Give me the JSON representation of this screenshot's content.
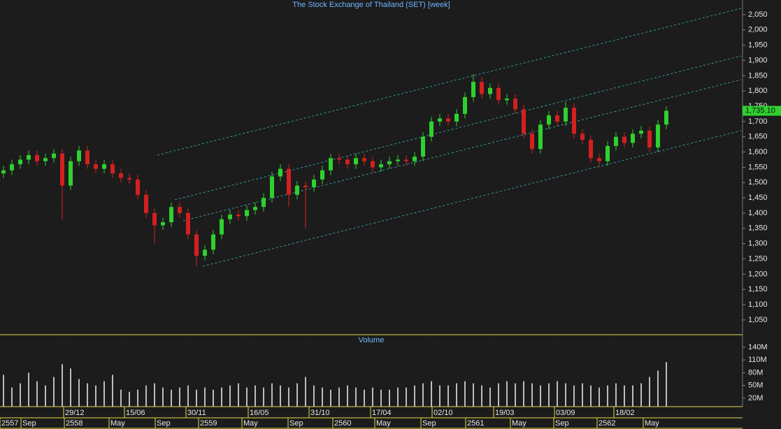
{
  "chart_data": {
    "type": "candlestick",
    "title": "The Stock Exchange of Thailand (SET) [week]",
    "volume_title": "Volume",
    "last_price_label": "1,735.10",
    "up_color": "#2fd12f",
    "down_color": "#d42020",
    "ylim": [
      1004,
      2098
    ],
    "yticks": [
      {
        "value": 1050,
        "label": "1,050"
      },
      {
        "value": 1100,
        "label": "1,100"
      },
      {
        "value": 1150,
        "label": "1,150"
      },
      {
        "value": 1200,
        "label": "1,200"
      },
      {
        "value": 1250,
        "label": "1,250"
      },
      {
        "value": 1300,
        "label": "1,300"
      },
      {
        "value": 1350,
        "label": "1,350"
      },
      {
        "value": 1400,
        "label": "1,400"
      },
      {
        "value": 1450,
        "label": "1,450"
      },
      {
        "value": 1500,
        "label": "1,500"
      },
      {
        "value": 1550,
        "label": "1,550"
      },
      {
        "value": 1600,
        "label": "1,600"
      },
      {
        "value": 1650,
        "label": "1,650"
      },
      {
        "value": 1700,
        "label": "1,700"
      },
      {
        "value": 1750,
        "label": "1,750"
      },
      {
        "value": 1800,
        "label": "1,800"
      },
      {
        "value": 1850,
        "label": "1,850"
      },
      {
        "value": 1900,
        "label": "1,900"
      },
      {
        "value": 1950,
        "label": "1,950"
      },
      {
        "value": 2000,
        "label": "2,000"
      },
      {
        "value": 2050,
        "label": "2,050"
      }
    ],
    "y2lim": [
      0,
      168
    ],
    "y2ticks": [
      {
        "value": 20,
        "label": "20M"
      },
      {
        "value": 50,
        "label": "50M"
      },
      {
        "value": 80,
        "label": "80M"
      },
      {
        "value": 110,
        "label": "110M"
      },
      {
        "value": 140,
        "label": "140M"
      }
    ],
    "date_labels": [
      "29/12",
      "15/06",
      "30/11",
      "16/05",
      "31/10",
      "17/04",
      "02/10",
      "19/03",
      "03/09",
      "18/02"
    ],
    "period_labels": [
      "2557",
      "Sep",
      "2558",
      "May",
      "Sep",
      "2559",
      "May",
      "Sep",
      "2560",
      "May",
      "Sep",
      "2561",
      "May",
      "Sep",
      "2562",
      "May"
    ],
    "open": [
      1530,
      1540,
      1560,
      1575,
      1590,
      1570,
      1580,
      1595,
      1490,
      1570,
      1605,
      1560,
      1545,
      1560,
      1530,
      1515,
      1510,
      1460,
      1400,
      1360,
      1370,
      1420,
      1400,
      1330,
      1260,
      1280,
      1330,
      1380,
      1395,
      1390,
      1410,
      1420,
      1450,
      1520,
      1545,
      1460,
      1490,
      1485,
      1510,
      1540,
      1580,
      1575,
      1560,
      1580,
      1570,
      1550,
      1560,
      1570,
      1575,
      1570,
      1585,
      1650,
      1700,
      1710,
      1700,
      1725,
      1780,
      1830,
      1790,
      1810,
      1770,
      1775,
      1740,
      1660,
      1610,
      1690,
      1720,
      1700,
      1745,
      1660,
      1640,
      1580,
      1570,
      1620,
      1650,
      1630,
      1660,
      1670,
      1615,
      1690
    ],
    "high": [
      1555,
      1575,
      1590,
      1605,
      1605,
      1595,
      1610,
      1610,
      1585,
      1620,
      1620,
      1575,
      1575,
      1575,
      1545,
      1530,
      1525,
      1475,
      1415,
      1385,
      1435,
      1435,
      1415,
      1345,
      1295,
      1345,
      1395,
      1410,
      1410,
      1425,
      1435,
      1465,
      1535,
      1560,
      1560,
      1505,
      1505,
      1525,
      1555,
      1595,
      1595,
      1590,
      1595,
      1595,
      1585,
      1575,
      1585,
      1590,
      1590,
      1600,
      1665,
      1715,
      1725,
      1725,
      1740,
      1795,
      1855,
      1845,
      1825,
      1825,
      1790,
      1790,
      1755,
      1675,
      1705,
      1735,
      1735,
      1765,
      1760,
      1675,
      1655,
      1595,
      1635,
      1665,
      1665,
      1675,
      1685,
      1685,
      1705,
      1750
    ],
    "low": [
      1515,
      1525,
      1545,
      1560,
      1555,
      1555,
      1565,
      1380,
      1475,
      1555,
      1545,
      1530,
      1530,
      1515,
      1500,
      1495,
      1445,
      1385,
      1300,
      1345,
      1355,
      1385,
      1315,
      1225,
      1245,
      1265,
      1315,
      1365,
      1375,
      1375,
      1395,
      1405,
      1435,
      1505,
      1420,
      1445,
      1350,
      1470,
      1495,
      1525,
      1560,
      1545,
      1545,
      1555,
      1535,
      1535,
      1545,
      1555,
      1555,
      1555,
      1570,
      1635,
      1685,
      1685,
      1685,
      1710,
      1765,
      1775,
      1775,
      1755,
      1755,
      1725,
      1645,
      1595,
      1595,
      1675,
      1685,
      1685,
      1645,
      1625,
      1565,
      1555,
      1555,
      1605,
      1615,
      1615,
      1645,
      1600,
      1600,
      1675
    ],
    "close": [
      1540,
      1560,
      1575,
      1590,
      1570,
      1580,
      1595,
      1490,
      1570,
      1605,
      1560,
      1545,
      1560,
      1530,
      1515,
      1510,
      1460,
      1400,
      1360,
      1370,
      1420,
      1400,
      1330,
      1260,
      1280,
      1330,
      1380,
      1395,
      1390,
      1410,
      1420,
      1450,
      1520,
      1545,
      1460,
      1490,
      1485,
      1510,
      1540,
      1580,
      1575,
      1560,
      1580,
      1570,
      1550,
      1560,
      1570,
      1575,
      1570,
      1585,
      1650,
      1700,
      1710,
      1700,
      1725,
      1780,
      1830,
      1790,
      1810,
      1770,
      1775,
      1740,
      1660,
      1610,
      1690,
      1720,
      1700,
      1745,
      1660,
      1640,
      1580,
      1570,
      1620,
      1650,
      1630,
      1660,
      1670,
      1615,
      1690,
      1735
    ],
    "volume": [
      75,
      45,
      55,
      80,
      60,
      50,
      70,
      100,
      90,
      65,
      55,
      50,
      60,
      75,
      40,
      35,
      40,
      50,
      55,
      45,
      40,
      45,
      50,
      40,
      45,
      40,
      45,
      50,
      55,
      45,
      50,
      45,
      55,
      50,
      45,
      55,
      70,
      50,
      45,
      40,
      45,
      50,
      45,
      40,
      45,
      40,
      40,
      45,
      45,
      50,
      55,
      60,
      50,
      50,
      55,
      60,
      55,
      50,
      45,
      55,
      60,
      55,
      60,
      55,
      50,
      55,
      60,
      55,
      50,
      55,
      50,
      45,
      50,
      55,
      50,
      50,
      55,
      70,
      85,
      105
    ]
  }
}
